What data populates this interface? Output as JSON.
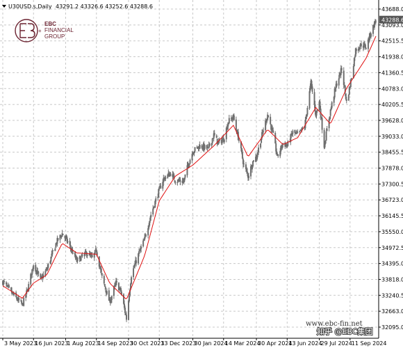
{
  "header": {
    "symbol": "U30USD.s,Daily",
    "ohlc": "43291.2 43326.6 43252.6 43288.6"
  },
  "logo": {
    "line1": "EBC",
    "line2": "FINANCIAL",
    "line3": "GROUP"
  },
  "watermark": {
    "site": "www.ebc-fin.net",
    "zhihu": "知乎 @EBC集团"
  },
  "colors": {
    "candle": "#6e6e6e",
    "ma_line": "#e01010",
    "grid": "#c8c8c8",
    "logo": "#6b2230",
    "price_tag": "#555555"
  },
  "chart_data": {
    "type": "candlestick",
    "title": "",
    "xlabel": "",
    "ylabel": "",
    "last_price": "43288.6",
    "ylim": [
      32095.0,
      43688.0
    ],
    "y_ticks": [
      "43688.0",
      "43093.0",
      "42515.5",
      "41938.0",
      "41360.5",
      "40783.0",
      "40205.5",
      "39628.0",
      "39033.0",
      "38455.5",
      "37878.0",
      "37300.5",
      "36723.0",
      "36145.5",
      "35550.0",
      "34972.5",
      "34395.0",
      "33818.0",
      "33240.5",
      "32663.0",
      "32095.0"
    ],
    "x_ticks": [
      "3 May 2023",
      "16 Jun 2023",
      "1 Aug 2023",
      "14 Sep 2023",
      "30 Oct 2023",
      "13 Dec 2023",
      "30 Jan 2024",
      "14 Mar 2024",
      "30 Apr 2024",
      "13 Jun 2024",
      "29 Jul 2024",
      "11 Sep 2024"
    ],
    "price_keypoints": [
      {
        "date": "2023-05-03",
        "close": 33750
      },
      {
        "date": "2023-05-17",
        "close": 33300
      },
      {
        "date": "2023-05-31",
        "close": 32900
      },
      {
        "date": "2023-06-08",
        "close": 33500
      },
      {
        "date": "2023-06-16",
        "close": 34400
      },
      {
        "date": "2023-06-26",
        "close": 33800
      },
      {
        "date": "2023-07-05",
        "close": 34200
      },
      {
        "date": "2023-07-19",
        "close": 35200
      },
      {
        "date": "2023-07-27",
        "close": 35500
      },
      {
        "date": "2023-08-04",
        "close": 35200
      },
      {
        "date": "2023-08-17",
        "close": 34500
      },
      {
        "date": "2023-08-31",
        "close": 34800
      },
      {
        "date": "2023-09-08",
        "close": 34600
      },
      {
        "date": "2023-09-14",
        "close": 34900
      },
      {
        "date": "2023-09-22",
        "close": 33900
      },
      {
        "date": "2023-10-03",
        "close": 33000
      },
      {
        "date": "2023-10-12",
        "close": 33700
      },
      {
        "date": "2023-10-19",
        "close": 33400
      },
      {
        "date": "2023-10-27",
        "close": 32400
      },
      {
        "date": "2023-11-03",
        "close": 34000
      },
      {
        "date": "2023-11-14",
        "close": 34800
      },
      {
        "date": "2023-11-22",
        "close": 35300
      },
      {
        "date": "2023-12-01",
        "close": 36200
      },
      {
        "date": "2023-12-13",
        "close": 37100
      },
      {
        "date": "2023-12-19",
        "close": 37500
      },
      {
        "date": "2023-12-29",
        "close": 37700
      },
      {
        "date": "2024-01-05",
        "close": 37450
      },
      {
        "date": "2024-01-17",
        "close": 37400
      },
      {
        "date": "2024-01-23",
        "close": 38000
      },
      {
        "date": "2024-01-30",
        "close": 38500
      },
      {
        "date": "2024-02-09",
        "close": 38700
      },
      {
        "date": "2024-02-21",
        "close": 38600
      },
      {
        "date": "2024-02-29",
        "close": 39100
      },
      {
        "date": "2024-03-06",
        "close": 38800
      },
      {
        "date": "2024-03-14",
        "close": 38950
      },
      {
        "date": "2024-03-21",
        "close": 39600
      },
      {
        "date": "2024-03-28",
        "close": 39750
      },
      {
        "date": "2024-04-05",
        "close": 38900
      },
      {
        "date": "2024-04-12",
        "close": 38000
      },
      {
        "date": "2024-04-18",
        "close": 37600
      },
      {
        "date": "2024-04-26",
        "close": 38200
      },
      {
        "date": "2024-04-30",
        "close": 38300
      },
      {
        "date": "2024-05-08",
        "close": 39100
      },
      {
        "date": "2024-05-16",
        "close": 39850
      },
      {
        "date": "2024-05-23",
        "close": 39200
      },
      {
        "date": "2024-05-30",
        "close": 38300
      },
      {
        "date": "2024-06-07",
        "close": 38800
      },
      {
        "date": "2024-06-13",
        "close": 38700
      },
      {
        "date": "2024-06-21",
        "close": 39200
      },
      {
        "date": "2024-06-28",
        "close": 39100
      },
      {
        "date": "2024-07-08",
        "close": 39400
      },
      {
        "date": "2024-07-17",
        "close": 41000
      },
      {
        "date": "2024-07-24",
        "close": 39850
      },
      {
        "date": "2024-07-29",
        "close": 40300
      },
      {
        "date": "2024-08-05",
        "close": 38700
      },
      {
        "date": "2024-08-14",
        "close": 40000
      },
      {
        "date": "2024-08-22",
        "close": 40900
      },
      {
        "date": "2024-08-30",
        "close": 41500
      },
      {
        "date": "2024-09-06",
        "close": 40300
      },
      {
        "date": "2024-09-11",
        "close": 40900
      },
      {
        "date": "2024-09-19",
        "close": 42200
      },
      {
        "date": "2024-09-27",
        "close": 42400
      },
      {
        "date": "2024-10-04",
        "close": 42300
      },
      {
        "date": "2024-10-11",
        "close": 42850
      },
      {
        "date": "2024-10-18",
        "close": 43288.6
      }
    ],
    "ma_keypoints": [
      {
        "date": "2023-05-03",
        "value": 33600
      },
      {
        "date": "2023-05-31",
        "value": 33150
      },
      {
        "date": "2023-06-16",
        "value": 33700
      },
      {
        "date": "2023-07-05",
        "value": 34000
      },
      {
        "date": "2023-07-27",
        "value": 35150
      },
      {
        "date": "2023-08-17",
        "value": 34800
      },
      {
        "date": "2023-09-14",
        "value": 34750
      },
      {
        "date": "2023-10-03",
        "value": 33700
      },
      {
        "date": "2023-10-27",
        "value": 33100
      },
      {
        "date": "2023-11-22",
        "value": 34700
      },
      {
        "date": "2023-12-13",
        "value": 36700
      },
      {
        "date": "2024-01-05",
        "value": 37600
      },
      {
        "date": "2024-01-30",
        "value": 38000
      },
      {
        "date": "2024-02-29",
        "value": 38700
      },
      {
        "date": "2024-03-28",
        "value": 39450
      },
      {
        "date": "2024-04-18",
        "value": 38300
      },
      {
        "date": "2024-05-16",
        "value": 39300
      },
      {
        "date": "2024-06-07",
        "value": 38750
      },
      {
        "date": "2024-06-28",
        "value": 39000
      },
      {
        "date": "2024-07-24",
        "value": 40100
      },
      {
        "date": "2024-08-14",
        "value": 39500
      },
      {
        "date": "2024-09-06",
        "value": 40800
      },
      {
        "date": "2024-10-04",
        "value": 41900
      },
      {
        "date": "2024-10-18",
        "value": 42700
      }
    ]
  }
}
